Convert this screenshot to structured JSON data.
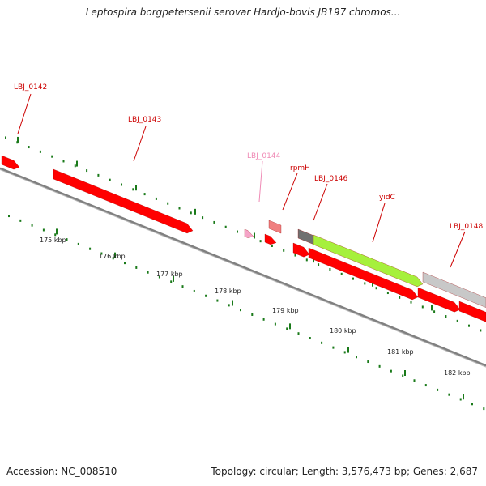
{
  "title": "Leptospira borgpetersenii serovar Hardjo-bovis JB197 chromos...",
  "footer": {
    "accession": "Accession: NC_008510",
    "summary": "Topology: circular; Length: 3,576,473 bp; Genes: 2,687"
  },
  "colors": {
    "gene_red": "#ff0000",
    "gene_pink": "#f5a3c7",
    "gene_salmon": "#f08080",
    "gene_green": "#a6f03c",
    "gene_dark": "#707070",
    "gene_light": "#c8c8c8",
    "backbone": "#808080",
    "tick_green": "#1a7a1a",
    "label_red": "#cc0000",
    "label_pink": "#ef8ab5"
  },
  "scale_labels": [
    "175 kbp",
    "176 kbp",
    "177 kbp",
    "178 kbp",
    "179 kbp",
    "180 kbp",
    "181 kbp",
    "182 kbp"
  ],
  "gene_labels": [
    {
      "text": "LBJ_0142",
      "color": "red"
    },
    {
      "text": "LBJ_0143",
      "color": "red"
    },
    {
      "text": "LBJ_0144",
      "color": "pink"
    },
    {
      "text": "rpmH",
      "color": "red"
    },
    {
      "text": "LBJ_0146",
      "color": "red"
    },
    {
      "text": "yidC",
      "color": "red"
    },
    {
      "text": "LBJ_0148",
      "color": "red"
    }
  ]
}
